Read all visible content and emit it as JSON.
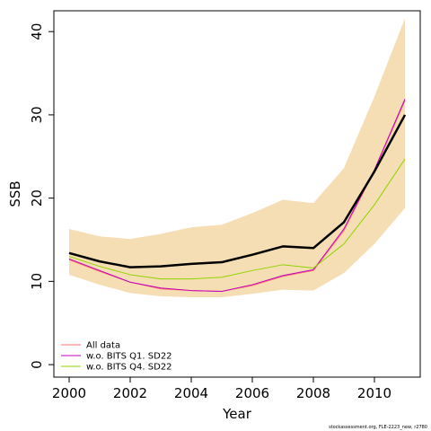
{
  "chart_data": {
    "type": "line",
    "xlabel": "Year",
    "ylabel": "SSB",
    "xlim": [
      1999.5,
      2011.5
    ],
    "ylim": [
      -1.5,
      42.5
    ],
    "x_ticks": [
      2000,
      2002,
      2004,
      2006,
      2008,
      2010
    ],
    "y_ticks": [
      0,
      10,
      20,
      30,
      40
    ],
    "x": [
      2000,
      2001,
      2002,
      2003,
      2004,
      2005,
      2006,
      2007,
      2008,
      2009,
      2010,
      2011
    ],
    "band": {
      "color": "#f5deb3",
      "lower": [
        10.8,
        9.6,
        8.6,
        8.2,
        8.1,
        8.1,
        8.5,
        9.0,
        8.9,
        11.0,
        14.5,
        18.8
      ],
      "upper": [
        16.3,
        15.4,
        15.1,
        15.7,
        16.5,
        16.8,
        18.2,
        19.8,
        19.4,
        23.6,
        32.2,
        41.6
      ]
    },
    "series": [
      {
        "name": "All data",
        "color": "#000000",
        "width": 2.5,
        "legend": false,
        "values": [
          13.4,
          12.4,
          11.7,
          11.8,
          12.1,
          12.3,
          13.2,
          14.2,
          14.0,
          17.1,
          23.2,
          30.0
        ]
      },
      {
        "name": "All data",
        "color": "#ff6f6f",
        "width": 1,
        "legend": true,
        "values": [
          12.6,
          11.2,
          9.9,
          9.1,
          8.9,
          8.8,
          9.5,
          10.6,
          11.3,
          16.1,
          23.3,
          31.7
        ]
      },
      {
        "name": "w.o. BITS Q1. SD22",
        "color": "#c000c0",
        "width": 1,
        "legend": true,
        "values": [
          12.7,
          11.3,
          9.9,
          9.2,
          8.9,
          8.8,
          9.6,
          10.7,
          11.4,
          16.3,
          23.4,
          31.9
        ]
      },
      {
        "name": "w.o. BITS Q4. SD22",
        "color": "#8fd400",
        "width": 1,
        "legend": true,
        "values": [
          13.0,
          11.8,
          10.8,
          10.3,
          10.3,
          10.5,
          11.3,
          12.0,
          11.6,
          14.5,
          19.2,
          24.7
        ]
      }
    ],
    "legend_position": "bottom-left",
    "grid": false
  },
  "footnote": "stockassessment.org, FLE-2223_new, r2780"
}
